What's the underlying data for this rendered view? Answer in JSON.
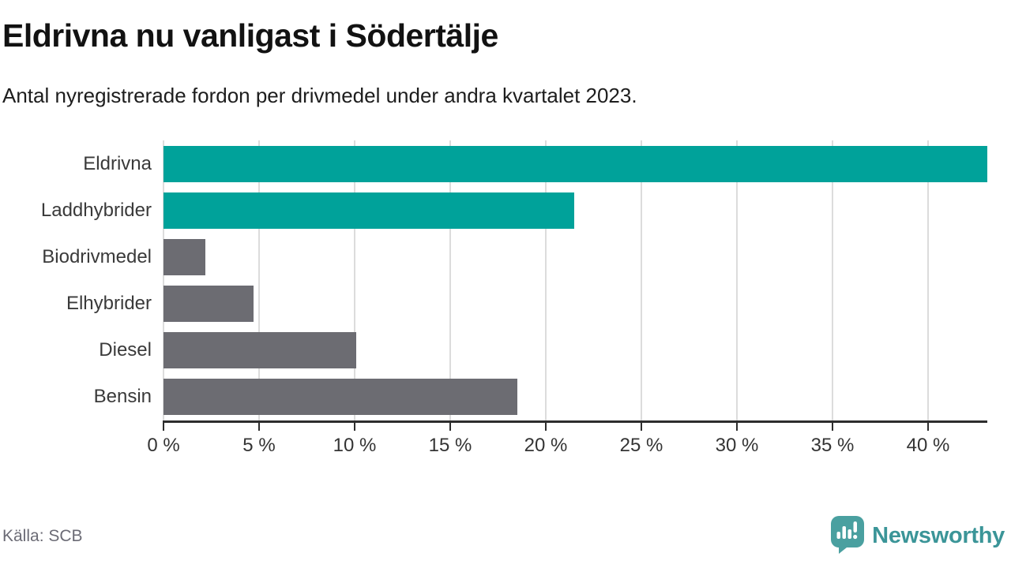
{
  "title": "Eldrivna nu vanligast i Södertälje",
  "subtitle": "Antal nyregistrerade fordon per drivmedel under andra kvartalet 2023.",
  "source": "Källa: SCB",
  "brand": {
    "name": "Newsworthy",
    "logo_icon": "newsworthy-speech-bubble-barchart-icon",
    "color": "#3b9598",
    "logo_fill": "#4aa0a0"
  },
  "colors": {
    "highlight_bar": "#00a29a",
    "default_bar": "#6c6c72",
    "gridline": "#dcdcdc",
    "axis_line": "#2d2d2d",
    "tick_label": "#343434",
    "category_label": "#3a3a3a"
  },
  "chart_data": {
    "type": "bar",
    "orientation": "horizontal",
    "title": "Eldrivna nu vanligast i Södertälje",
    "subtitle": "Antal nyregistrerade fordon per drivmedel under andra kvartalet 2023.",
    "categories": [
      "Eldrivna",
      "Laddhybrider",
      "Biodrivmedel",
      "Elhybrider",
      "Diesel",
      "Bensin"
    ],
    "values": [
      43.1,
      21.5,
      2.2,
      4.7,
      10.1,
      18.5
    ],
    "unit": "%",
    "bar_colors": [
      "#00a29a",
      "#00a29a",
      "#6c6c72",
      "#6c6c72",
      "#6c6c72",
      "#6c6c72"
    ],
    "xlabel": "",
    "ylabel": "",
    "xlim": [
      0,
      43.1
    ],
    "xticks": [
      0,
      5,
      10,
      15,
      20,
      25,
      30,
      35,
      40
    ],
    "tick_format": "{v} %",
    "grid": true,
    "legend": false
  }
}
